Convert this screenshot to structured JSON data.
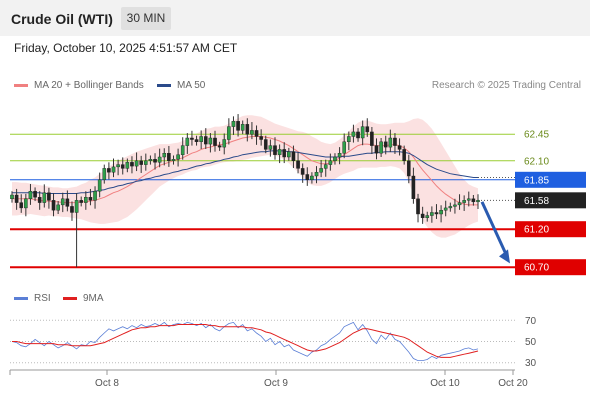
{
  "header": {
    "title": "Crude Oil (WTI)",
    "interval": "30 MIN",
    "datetime": "Friday, October 10, 2025 4:51:57 AM CET",
    "copyright": "Research © 2025 Trading Central"
  },
  "legend": {
    "ma20_label": "MA 20 + Bollinger Bands",
    "ma20_color": "#f08080",
    "ma50_label": "MA 50",
    "ma50_color": "#2a4a8a",
    "rsi_label": "RSI",
    "rsi_color": "#5b7fd6",
    "rsi_ma_label": "9MA",
    "rsi_ma_color": "#e02020"
  },
  "chart_data": [
    {
      "type": "candlestick",
      "ylim": [
        60.4,
        62.9
      ],
      "x_ticks": [
        "Oct 8",
        "Oct 9",
        "Oct 10",
        "Oct 20"
      ],
      "current_price": {
        "label": "61.58",
        "value": 61.58,
        "color": "#222222"
      },
      "levels": [
        {
          "label": "62.45",
          "value": 62.45,
          "kind": "resistance",
          "color": "#9acd32"
        },
        {
          "label": "62.10",
          "value": 62.1,
          "kind": "resistance",
          "color": "#9acd32"
        },
        {
          "label": "61.85",
          "value": 61.85,
          "kind": "pivot",
          "color": "#1f5fe0"
        },
        {
          "label": "61.20",
          "value": 61.2,
          "kind": "support",
          "color": "#e00000"
        },
        {
          "label": "60.70",
          "value": 60.7,
          "kind": "support",
          "color": "#e00000"
        }
      ],
      "forecast": {
        "from": 61.56,
        "to": 60.75,
        "color": "#2a5bb0"
      },
      "close_series": [
        61.65,
        61.55,
        61.48,
        61.6,
        61.7,
        61.62,
        61.55,
        61.68,
        61.58,
        61.45,
        61.52,
        61.6,
        61.5,
        61.42,
        61.58,
        61.55,
        61.62,
        61.58,
        61.7,
        61.85,
        62.0,
        61.95,
        62.02,
        62.05,
        62.0,
        62.08,
        62.03,
        62.1,
        62.05,
        62.1,
        62.12,
        62.08,
        62.15,
        62.2,
        62.1,
        62.12,
        62.18,
        62.3,
        62.4,
        62.38,
        62.35,
        62.42,
        62.32,
        62.4,
        62.3,
        62.28,
        62.38,
        62.55,
        62.62,
        62.5,
        62.58,
        62.45,
        62.5,
        62.42,
        62.38,
        62.25,
        62.3,
        62.18,
        62.25,
        62.15,
        62.22,
        62.1,
        62.0,
        61.92,
        61.85,
        61.9,
        61.95,
        62.0,
        62.05,
        62.1,
        62.15,
        62.2,
        62.35,
        62.42,
        62.48,
        62.4,
        62.55,
        62.48,
        62.3,
        62.2,
        62.35,
        62.28,
        62.4,
        62.3,
        62.25,
        62.1,
        61.9,
        61.6,
        61.4,
        61.35,
        61.38,
        61.42,
        61.4,
        61.45,
        61.48,
        61.5,
        61.52,
        61.55,
        61.58,
        61.6,
        61.56,
        61.58
      ],
      "ma20": [
        61.6,
        61.6,
        61.6,
        61.6,
        61.6,
        61.59,
        61.58,
        61.57,
        61.57,
        61.56,
        61.56,
        61.55,
        61.55,
        61.55,
        61.55,
        61.56,
        61.56,
        61.57,
        61.58,
        61.6,
        61.62,
        61.65,
        61.68,
        61.7,
        61.73,
        61.76,
        61.8,
        61.84,
        61.88,
        61.92,
        61.96,
        62.0,
        62.04,
        62.06,
        62.08,
        62.1,
        62.12,
        62.14,
        62.17,
        62.2,
        62.22,
        62.25,
        62.27,
        62.28,
        62.3,
        62.31,
        62.32,
        62.34,
        62.36,
        62.38,
        62.4,
        62.41,
        62.42,
        62.42,
        62.42,
        62.41,
        62.4,
        62.38,
        62.36,
        62.33,
        62.3,
        62.26,
        62.22,
        62.18,
        62.14,
        62.1,
        62.08,
        62.06,
        62.06,
        62.07,
        62.1,
        62.14,
        62.18,
        62.22,
        62.26,
        62.3,
        62.32,
        62.32,
        62.31,
        62.3,
        62.3,
        62.3,
        62.31,
        62.31,
        62.3,
        62.27,
        62.22,
        62.15,
        62.06,
        61.98,
        61.91,
        61.84,
        61.77,
        61.71,
        61.66,
        61.62,
        61.58,
        61.55,
        61.53,
        61.52,
        61.52,
        61.52
      ],
      "bb_width": [
        0.22,
        0.22,
        0.21,
        0.21,
        0.2,
        0.2,
        0.2,
        0.2,
        0.19,
        0.19,
        0.19,
        0.19,
        0.19,
        0.2,
        0.21,
        0.23,
        0.25,
        0.28,
        0.3,
        0.33,
        0.35,
        0.37,
        0.39,
        0.4,
        0.4,
        0.4,
        0.39,
        0.38,
        0.36,
        0.34,
        0.32,
        0.3,
        0.28,
        0.26,
        0.24,
        0.23,
        0.22,
        0.22,
        0.22,
        0.23,
        0.24,
        0.24,
        0.25,
        0.25,
        0.25,
        0.24,
        0.24,
        0.25,
        0.27,
        0.28,
        0.29,
        0.29,
        0.28,
        0.27,
        0.26,
        0.24,
        0.22,
        0.21,
        0.21,
        0.22,
        0.23,
        0.25,
        0.27,
        0.3,
        0.32,
        0.32,
        0.31,
        0.29,
        0.27,
        0.25,
        0.24,
        0.24,
        0.25,
        0.27,
        0.29,
        0.3,
        0.31,
        0.31,
        0.3,
        0.29,
        0.28,
        0.28,
        0.28,
        0.29,
        0.3,
        0.33,
        0.4,
        0.5,
        0.6,
        0.66,
        0.68,
        0.68,
        0.66,
        0.62,
        0.57,
        0.51,
        0.45,
        0.38,
        0.32,
        0.27,
        0.24,
        0.22
      ],
      "ma50": [
        61.68,
        61.68,
        61.68,
        61.68,
        61.68,
        61.68,
        61.68,
        61.67,
        61.67,
        61.67,
        61.67,
        61.67,
        61.67,
        61.67,
        61.67,
        61.68,
        61.68,
        61.69,
        61.7,
        61.71,
        61.72,
        61.74,
        61.75,
        61.77,
        61.78,
        61.8,
        61.81,
        61.83,
        61.84,
        61.86,
        61.87,
        61.89,
        61.9,
        61.92,
        61.93,
        61.95,
        61.96,
        61.98,
        61.99,
        62.01,
        62.03,
        62.04,
        62.06,
        62.07,
        62.09,
        62.1,
        62.12,
        62.13,
        62.15,
        62.16,
        62.18,
        62.19,
        62.2,
        62.21,
        62.22,
        62.22,
        62.23,
        62.23,
        62.23,
        62.23,
        62.22,
        62.22,
        62.21,
        62.2,
        62.19,
        62.18,
        62.17,
        62.16,
        62.15,
        62.15,
        62.15,
        62.15,
        62.16,
        62.16,
        62.17,
        62.18,
        62.19,
        62.2,
        62.2,
        62.21,
        62.21,
        62.22,
        62.22,
        62.22,
        62.22,
        62.21,
        62.2,
        62.17,
        62.13,
        62.09,
        62.05,
        62.02,
        61.99,
        61.97,
        61.95,
        61.93,
        61.92,
        61.91,
        61.9,
        61.89,
        61.88,
        61.88
      ]
    },
    {
      "type": "line",
      "title": "RSI",
      "ylim": [
        25,
        75
      ],
      "y_ticks": [
        "70",
        "50",
        "30"
      ],
      "rsi": [
        50,
        49,
        46,
        45,
        48,
        52,
        49,
        46,
        50,
        47,
        44,
        46,
        49,
        46,
        43,
        47,
        46,
        50,
        49,
        54,
        58,
        62,
        60,
        62,
        64,
        62,
        65,
        63,
        66,
        64,
        65,
        67,
        65,
        68,
        64,
        66,
        67,
        66,
        68,
        67,
        65,
        67,
        63,
        66,
        62,
        60,
        64,
        67,
        68,
        63,
        66,
        60,
        62,
        58,
        55,
        50,
        53,
        47,
        50,
        45,
        47,
        42,
        40,
        38,
        36,
        40,
        42,
        46,
        48,
        52,
        55,
        58,
        64,
        66,
        68,
        61,
        66,
        60,
        52,
        48,
        56,
        52,
        58,
        52,
        50,
        45,
        40,
        34,
        32,
        32,
        33,
        36,
        34,
        37,
        38,
        39,
        40,
        41,
        43,
        44,
        42,
        43
      ],
      "rsi_ma": [
        50,
        50,
        49,
        48,
        48,
        48,
        48,
        48,
        48,
        48,
        47,
        47,
        47,
        46,
        46,
        46,
        46,
        46,
        47,
        48,
        49,
        51,
        53,
        55,
        57,
        59,
        61,
        62,
        63,
        63,
        64,
        64,
        65,
        65,
        65,
        65,
        66,
        66,
        66,
        66,
        66,
        66,
        66,
        65,
        65,
        64,
        64,
        64,
        64,
        64,
        64,
        63,
        63,
        62,
        61,
        59,
        58,
        56,
        54,
        52,
        50,
        48,
        46,
        44,
        42,
        41,
        41,
        42,
        43,
        45,
        47,
        49,
        52,
        55,
        58,
        60,
        62,
        62,
        61,
        60,
        59,
        58,
        57,
        56,
        55,
        54,
        52,
        49,
        46,
        43,
        40,
        38,
        36,
        35,
        35,
        35,
        36,
        37,
        38,
        39,
        40,
        41
      ]
    }
  ]
}
